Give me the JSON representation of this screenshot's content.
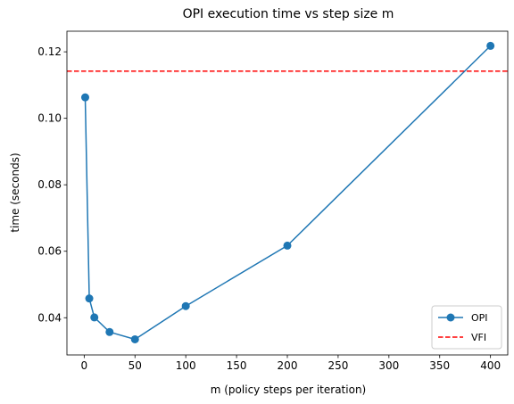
{
  "chart_data": {
    "type": "line",
    "title": "OPI execution time vs step size m",
    "xlabel": "m (policy steps per iteration)",
    "ylabel": "time (seconds)",
    "xlim": [
      -17,
      417
    ],
    "ylim": [
      0.0288,
      0.1262
    ],
    "x_ticks": [
      0,
      50,
      100,
      150,
      200,
      250,
      300,
      350,
      400
    ],
    "y_ticks": [
      0.04,
      0.06,
      0.08,
      0.1,
      0.12
    ],
    "x_tick_labels": [
      "0",
      "50",
      "100",
      "150",
      "200",
      "250",
      "300",
      "350",
      "400"
    ],
    "y_tick_labels": [
      "0.04",
      "0.06",
      "0.08",
      "0.10",
      "0.12"
    ],
    "series": [
      {
        "name": "OPI",
        "style": "line-with-markers",
        "color": "#1f77b4",
        "x": [
          1,
          5,
          10,
          25,
          50,
          100,
          200,
          400
        ],
        "y": [
          0.1063,
          0.0458,
          0.0401,
          0.0357,
          0.0335,
          0.0435,
          0.0617,
          0.1218
        ]
      },
      {
        "name": "VFI",
        "style": "dashed-horizontal",
        "color": "#ff0000",
        "y": 0.1142
      }
    ],
    "grid": false,
    "legend_position": "lower-right"
  }
}
